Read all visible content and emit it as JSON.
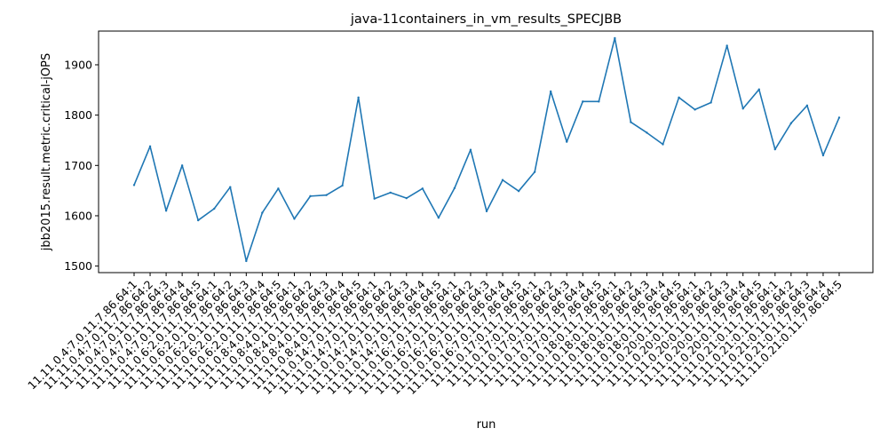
{
  "chart_data": {
    "type": "line",
    "title": "java-11containers_in_vm_results_SPECJBB",
    "xlabel": "run",
    "ylabel": "jbb2015.result.metric.critical-jOPS",
    "ylim": [
      1487,
      1967
    ],
    "yticks": [
      1500,
      1600,
      1700,
      1800,
      1900
    ],
    "grid": false,
    "categories": [
      "11.11.0.4:7.0.11.7.86.64:1",
      "11.11.0.4:7.0.11.7.86.64:2",
      "11.11.0.4:7.0.11.7.86.64:3",
      "11.11.0.4:7.0.11.7.86.64:4",
      "11.11.0.4:7.0.11.7.86.64:5",
      "11.11.0.6:2.0.11.7.86.64:1",
      "11.11.0.6:2.0.11.7.86.64:2",
      "11.11.0.6:2.0.11.7.86.64:3",
      "11.11.0.6:2.0.11.7.86.64:4",
      "11.11.0.6:2.0.11.7.86.64:5",
      "11.11.0.8:4.0.11.7.86.64:1",
      "11.11.0.8:4.0.11.7.86.64:2",
      "11.11.0.8:4.0.11.7.86.64:3",
      "11.11.0.8:4.0.11.7.86.64:4",
      "11.11.0.8:4.0.11.7.86.64:5",
      "11.11.0.14:7.0.11.7.86.64:1",
      "11.11.0.14:7.0.11.7.86.64:2",
      "11.11.0.14:7.0.11.7.86.64:3",
      "11.11.0.14:7.0.11.7.86.64:4",
      "11.11.0.14:7.0.11.7.86.64:5",
      "11.11.0.16:7.0.11.7.86.64:1",
      "11.11.0.16:7.0.11.7.86.64:2",
      "11.11.0.16:7.0.11.7.86.64:3",
      "11.11.0.16:7.0.11.7.86.64:4",
      "11.11.0.16:7.0.11.7.86.64:5",
      "11.11.0.17:0.11.7.86.64:1",
      "11.11.0.17:0.11.7.86.64:2",
      "11.11.0.17:0.11.7.86.64:3",
      "11.11.0.17:0.11.7.86.64:4",
      "11.11.0.17:0.11.7.86.64:5",
      "11.11.0.18:0.11.7.86.64:1",
      "11.11.0.18:0.11.7.86.64:2",
      "11.11.0.18:0.11.7.86.64:3",
      "11.11.0.18:0.11.7.86.64:4",
      "11.11.0.18:0.11.7.86.64:5",
      "11.11.0.20:0.11.7.86.64:1",
      "11.11.0.20:0.11.7.86.64:2",
      "11.11.0.20:0.11.7.86.64:3",
      "11.11.0.20:0.11.7.86.64:4",
      "11.11.0.20:0.11.7.86.64:5",
      "11.11.0.21:0.11.7.86.64:1",
      "11.11.0.21:0.11.7.86.64:2",
      "11.11.0.21:0.11.7.86.64:3",
      "11.11.0.21:0.11.7.86.64:4",
      "11.11.0.21:0.11.7.86.64:5"
    ],
    "series": [
      {
        "color": "#1f77b4",
        "values": [
          1661,
          1738,
          1610,
          1700,
          1591,
          1614,
          1657,
          1510,
          1606,
          1654,
          1594,
          1639,
          1641,
          1660,
          1835,
          1634,
          1646,
          1635,
          1654,
          1596,
          1655,
          1731,
          1609,
          1671,
          1649,
          1687,
          1847,
          1747,
          1827,
          1827,
          1953,
          1786,
          1765,
          1742,
          1835,
          1811,
          1825,
          1938,
          1813,
          1851,
          1732,
          1784,
          1819,
          1720,
          1795
        ]
      }
    ]
  }
}
